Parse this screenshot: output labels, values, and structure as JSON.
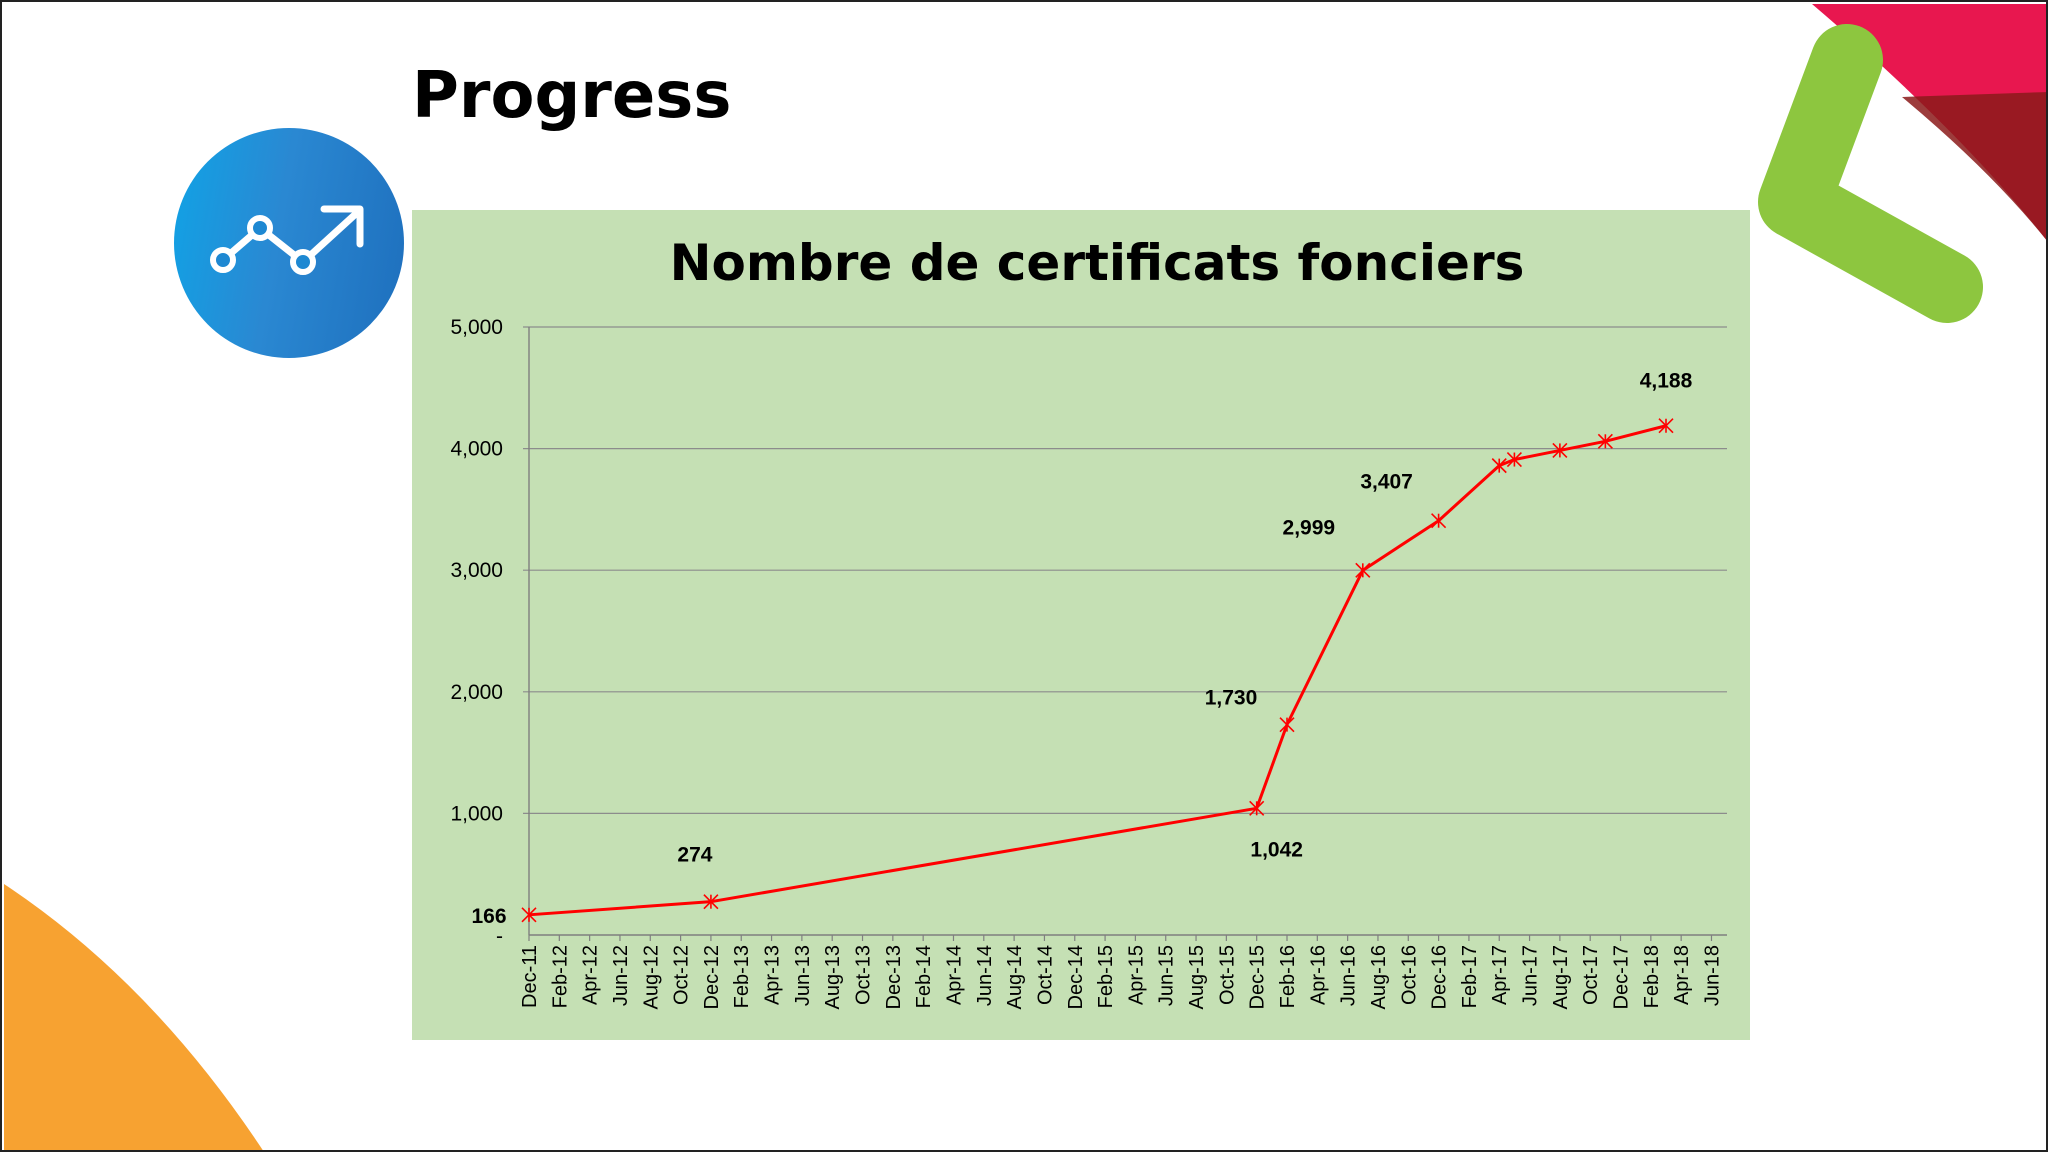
{
  "slide": {
    "title": "Progress",
    "icon": "trending-up-icon",
    "colors": {
      "panel": "#c5e0b4",
      "line": "#ff0000",
      "icon_circle": "#1e88d2",
      "deco_green": "#8dc63f",
      "deco_red": "#e8174f",
      "deco_orange": "#f7931e"
    }
  },
  "chart_data": {
    "type": "line",
    "title": "Nombre de certificats fonciers",
    "xlabel": "",
    "ylabel": "",
    "ylim": [
      0,
      5000
    ],
    "yticks": [
      "-",
      "1,000",
      "2,000",
      "3,000",
      "4,000",
      "5,000"
    ],
    "ytick_values": [
      0,
      1000,
      2000,
      3000,
      4000,
      5000
    ],
    "x_ticks": [
      "Dec-11",
      "Feb-12",
      "Apr-12",
      "Jun-12",
      "Aug-12",
      "Oct-12",
      "Dec-12",
      "Feb-13",
      "Apr-13",
      "Jun-13",
      "Aug-13",
      "Oct-13",
      "Dec-13",
      "Feb-14",
      "Apr-14",
      "Jun-14",
      "Aug-14",
      "Oct-14",
      "Dec-14",
      "Feb-15",
      "Apr-15",
      "Jun-15",
      "Aug-15",
      "Oct-15",
      "Dec-15",
      "Feb-16",
      "Apr-16",
      "Jun-16",
      "Aug-16",
      "Oct-16",
      "Dec-16",
      "Feb-17",
      "Apr-17",
      "Jun-17",
      "Aug-17",
      "Oct-17",
      "Dec-17",
      "Feb-18",
      "Apr-18",
      "Jun-18"
    ],
    "grid": true,
    "series": [
      {
        "color": "#ff0000",
        "marker": "asterisk",
        "points": [
          {
            "x": "2011-12",
            "y": 166,
            "label": "166"
          },
          {
            "x": "2012-12",
            "y": 274,
            "label": "274"
          },
          {
            "x": "2015-12",
            "y": 1042,
            "label": "1,042"
          },
          {
            "x": "2016-02",
            "y": 1730,
            "label": "1,730"
          },
          {
            "x": "2016-07",
            "y": 2999,
            "label": "2,999"
          },
          {
            "x": "2016-12",
            "y": 3407,
            "label": "3,407"
          },
          {
            "x": "2017-04",
            "y": 3860,
            "label": ""
          },
          {
            "x": "2017-05",
            "y": 3910,
            "label": ""
          },
          {
            "x": "2017-08",
            "y": 3985,
            "label": ""
          },
          {
            "x": "2017-11",
            "y": 4060,
            "label": ""
          },
          {
            "x": "2018-03",
            "y": 4188,
            "label": "4,188"
          }
        ]
      }
    ]
  }
}
